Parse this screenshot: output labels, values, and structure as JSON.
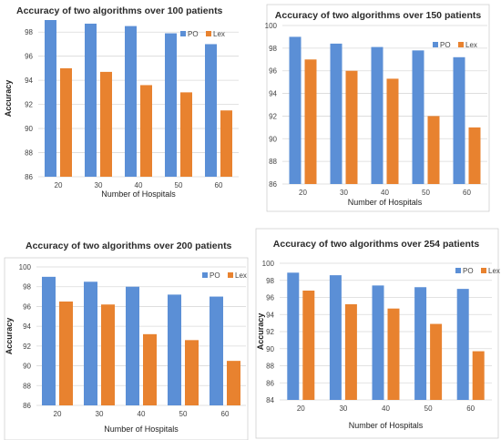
{
  "chart_data": [
    {
      "type": "bar",
      "title": "Accuracy of two algorithms over 100 patients",
      "xlabel": "Number of Hospitals",
      "ylabel": "Accuracy",
      "categories": [
        "20",
        "30",
        "40",
        "50",
        "60"
      ],
      "series": [
        {
          "name": "PO",
          "color": "#5b8fd6",
          "values": [
            99.0,
            98.7,
            98.5,
            97.9,
            97.0
          ]
        },
        {
          "name": "Lex",
          "color": "#e8822f",
          "values": [
            95.0,
            94.7,
            93.6,
            93.0,
            91.5
          ]
        }
      ],
      "ylim": [
        86,
        99
      ],
      "yticks": [
        86,
        88,
        90,
        92,
        94,
        96,
        98
      ],
      "legend": "top-right",
      "grid": true
    },
    {
      "type": "bar",
      "title": "Accuracy of two algorithms over 150 patients",
      "xlabel": "Number of Hospitals",
      "ylabel": "",
      "categories": [
        "20",
        "30",
        "40",
        "50",
        "60"
      ],
      "series": [
        {
          "name": "PO",
          "color": "#5b8fd6",
          "values": [
            99.0,
            98.4,
            98.1,
            97.8,
            97.2
          ]
        },
        {
          "name": "Lex",
          "color": "#e8822f",
          "values": [
            97.0,
            96.0,
            95.3,
            92.0,
            91.0
          ]
        }
      ],
      "ylim": [
        86,
        100
      ],
      "yticks": [
        86,
        88,
        90,
        92,
        94,
        96,
        98,
        100
      ],
      "legend": "top-right",
      "grid": true
    },
    {
      "type": "bar",
      "title": "Accuracy of two algorithms over 200 patients",
      "xlabel": "Number of Hospitals",
      "ylabel": "Accuracy",
      "categories": [
        "20",
        "30",
        "40",
        "50",
        "60"
      ],
      "series": [
        {
          "name": "PO",
          "color": "#5b8fd6",
          "values": [
            99.0,
            98.5,
            98.0,
            97.2,
            97.0
          ]
        },
        {
          "name": "Lex",
          "color": "#e8822f",
          "values": [
            96.5,
            96.2,
            93.2,
            92.6,
            90.5
          ]
        }
      ],
      "ylim": [
        86,
        100
      ],
      "yticks": [
        86,
        88,
        90,
        92,
        94,
        96,
        98,
        100
      ],
      "legend": "top-right",
      "grid": true
    },
    {
      "type": "bar",
      "title": "Accuracy of two algorithms over 254 patients",
      "xlabel": "Number of Hospitals",
      "ylabel": "Accuracy",
      "categories": [
        "20",
        "30",
        "40",
        "50",
        "60"
      ],
      "series": [
        {
          "name": "PO",
          "color": "#5b8fd6",
          "values": [
            98.9,
            98.6,
            97.4,
            97.2,
            97.0
          ]
        },
        {
          "name": "Lex",
          "color": "#e8822f",
          "values": [
            96.8,
            95.2,
            94.7,
            92.9,
            89.7
          ]
        }
      ],
      "ylim": [
        84,
        100
      ],
      "yticks": [
        84,
        86,
        88,
        90,
        92,
        94,
        96,
        98,
        100
      ],
      "legend": "top-right",
      "grid": true
    }
  ]
}
